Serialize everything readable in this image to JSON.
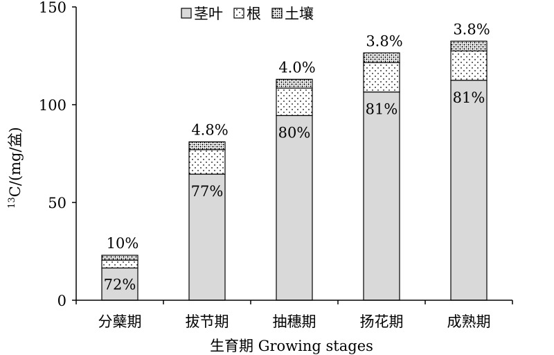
{
  "chart_data": {
    "type": "bar",
    "stacked": true,
    "title": "",
    "xlabel": "生育期 Growing stages",
    "ylabel_sup": "13",
    "ylabel": "C/(mg/盆)",
    "ylim": [
      0,
      150
    ],
    "yticks": [
      0,
      50,
      100,
      150
    ],
    "grid": false,
    "legend_position": "top",
    "categories": [
      "分蘖期",
      "拔节期",
      "抽穗期",
      "扬花期",
      "成熟期"
    ],
    "series": [
      {
        "name": "茎叶",
        "values": [
          16.5,
          64.5,
          94.5,
          106.5,
          112.5
        ],
        "color": "#d9d9d9",
        "pattern": "solid"
      },
      {
        "name": "根",
        "values": [
          4.0,
          12.5,
          14.0,
          15.0,
          15.0
        ],
        "color": "#ffffff",
        "pattern": "dots"
      },
      {
        "name": "土壤",
        "values": [
          2.5,
          4.0,
          4.5,
          5.0,
          5.0
        ],
        "color": "#ffffff",
        "pattern": "cross"
      }
    ],
    "inside_labels": [
      "72%",
      "77%",
      "80%",
      "81%",
      "81%"
    ],
    "top_labels": [
      "10%",
      "4.8%",
      "4.0%",
      "3.8%",
      "3.8%"
    ]
  }
}
